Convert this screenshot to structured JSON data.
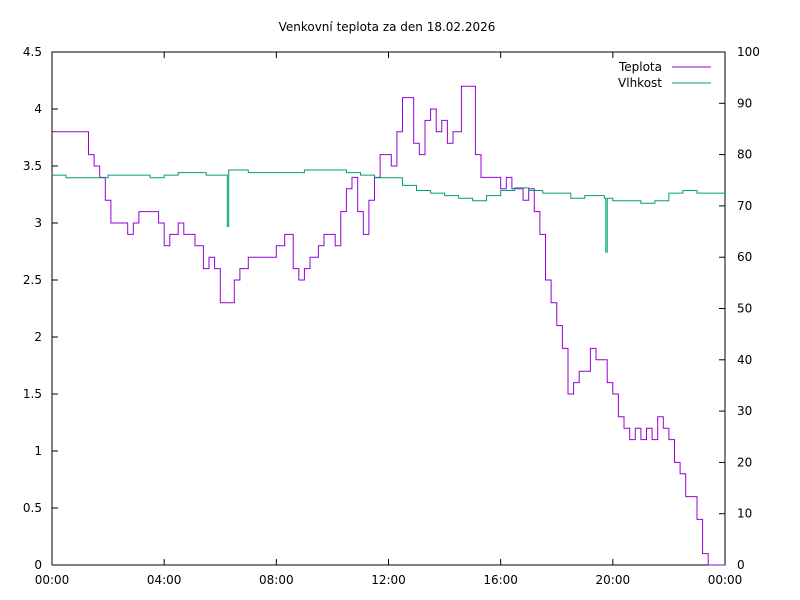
{
  "chart_data": {
    "type": "line",
    "title": "Venkovní teplota za den 18.02.2026",
    "xlabel": "",
    "ylabel": "",
    "y2label": "",
    "x_ticks": [
      "00:00",
      "04:00",
      "08:00",
      "12:00",
      "16:00",
      "20:00",
      "00:00"
    ],
    "xlim": [
      0,
      24
    ],
    "ylim": [
      0,
      4.5
    ],
    "y_ticks": [
      "0",
      "0.5",
      "1",
      "1.5",
      "2",
      "2.5",
      "3",
      "3.5",
      "4",
      "4.5"
    ],
    "y2lim": [
      0,
      100
    ],
    "y2_ticks": [
      "0",
      "10",
      "20",
      "30",
      "40",
      "50",
      "60",
      "70",
      "80",
      "90",
      "100"
    ],
    "grid": false,
    "legend_position": "top-right",
    "series": [
      {
        "name": "Teplota",
        "axis": "left",
        "color": "#9400D3",
        "x": [
          0,
          0.5,
          1.0,
          1.3,
          1.5,
          1.7,
          1.9,
          2.1,
          2.5,
          2.7,
          2.9,
          3.1,
          3.3,
          3.5,
          3.8,
          4.0,
          4.2,
          4.5,
          4.7,
          4.9,
          5.1,
          5.4,
          5.6,
          5.8,
          6.0,
          6.3,
          6.5,
          6.7,
          7.0,
          7.3,
          7.6,
          8.0,
          8.3,
          8.6,
          8.8,
          9.0,
          9.2,
          9.5,
          9.7,
          9.9,
          10.1,
          10.3,
          10.5,
          10.7,
          10.9,
          11.1,
          11.3,
          11.5,
          11.7,
          11.9,
          12.1,
          12.3,
          12.5,
          12.7,
          12.9,
          13.1,
          13.3,
          13.5,
          13.7,
          13.9,
          14.1,
          14.3,
          14.6,
          14.9,
          15.1,
          15.3,
          15.6,
          15.8,
          16.0,
          16.2,
          16.4,
          16.6,
          16.8,
          17.0,
          17.2,
          17.4,
          17.6,
          17.8,
          18.0,
          18.2,
          18.4,
          18.6,
          18.8,
          19.0,
          19.2,
          19.4,
          19.6,
          19.8,
          20.0,
          20.2,
          20.4,
          20.6,
          20.8,
          21.0,
          21.2,
          21.4,
          21.6,
          21.8,
          22.0,
          22.2,
          22.4,
          22.6,
          22.8,
          23.0,
          23.2,
          23.4,
          23.6,
          23.8,
          24.0
        ],
        "values": [
          3.8,
          3.8,
          3.8,
          3.6,
          3.5,
          3.4,
          3.2,
          3.0,
          3.0,
          2.9,
          3.0,
          3.1,
          3.1,
          3.1,
          3.0,
          2.8,
          2.9,
          3.0,
          2.9,
          2.9,
          2.8,
          2.6,
          2.7,
          2.6,
          2.3,
          2.3,
          2.5,
          2.6,
          2.7,
          2.7,
          2.7,
          2.8,
          2.9,
          2.6,
          2.5,
          2.6,
          2.7,
          2.8,
          2.9,
          2.9,
          2.8,
          3.1,
          3.3,
          3.4,
          3.1,
          2.9,
          3.2,
          3.4,
          3.6,
          3.6,
          3.5,
          3.8,
          4.1,
          4.1,
          3.7,
          3.6,
          3.9,
          4.0,
          3.8,
          3.9,
          3.7,
          3.8,
          4.2,
          4.2,
          3.6,
          3.4,
          3.4,
          3.4,
          3.3,
          3.4,
          3.3,
          3.3,
          3.2,
          3.3,
          3.1,
          2.9,
          2.5,
          2.3,
          2.1,
          1.9,
          1.5,
          1.6,
          1.7,
          1.7,
          1.9,
          1.8,
          1.8,
          1.6,
          1.5,
          1.3,
          1.2,
          1.1,
          1.2,
          1.1,
          1.2,
          1.1,
          1.3,
          1.2,
          1.1,
          0.9,
          0.8,
          0.6,
          0.6,
          0.4,
          0.1,
          0.0,
          0.0,
          0.0,
          0.0
        ]
      },
      {
        "name": "Vlhkost",
        "axis": "right",
        "color": "#009E73",
        "x": [
          0,
          0.5,
          1.0,
          1.5,
          2.0,
          2.5,
          3.0,
          3.5,
          4.0,
          4.5,
          5.0,
          5.5,
          6.0,
          6.2,
          6.25,
          6.3,
          6.5,
          7.0,
          7.5,
          8.0,
          8.5,
          9.0,
          9.5,
          10.0,
          10.5,
          11.0,
          11.5,
          12.0,
          12.5,
          13.0,
          13.5,
          14.0,
          14.5,
          15.0,
          15.5,
          16.0,
          16.5,
          17.0,
          17.5,
          18.0,
          18.5,
          19.0,
          19.5,
          19.7,
          19.75,
          19.8,
          20.0,
          20.5,
          21.0,
          21.5,
          22.0,
          22.5,
          23.0,
          23.5,
          24.0
        ],
        "values": [
          76,
          75.5,
          75.5,
          75.5,
          76,
          76,
          76,
          75.5,
          76,
          76.5,
          76.5,
          76,
          76,
          76,
          66,
          77,
          77,
          76.5,
          76.5,
          76.5,
          76.5,
          77,
          77,
          77,
          76.5,
          76,
          75.5,
          75.5,
          74,
          73,
          72.5,
          72,
          71.5,
          71,
          72,
          73,
          73.5,
          73,
          72.5,
          72.5,
          71.5,
          72,
          72,
          71.5,
          61,
          71.5,
          71,
          71,
          70.5,
          71,
          72.5,
          73,
          72.5,
          72.5,
          72.5
        ]
      }
    ]
  }
}
